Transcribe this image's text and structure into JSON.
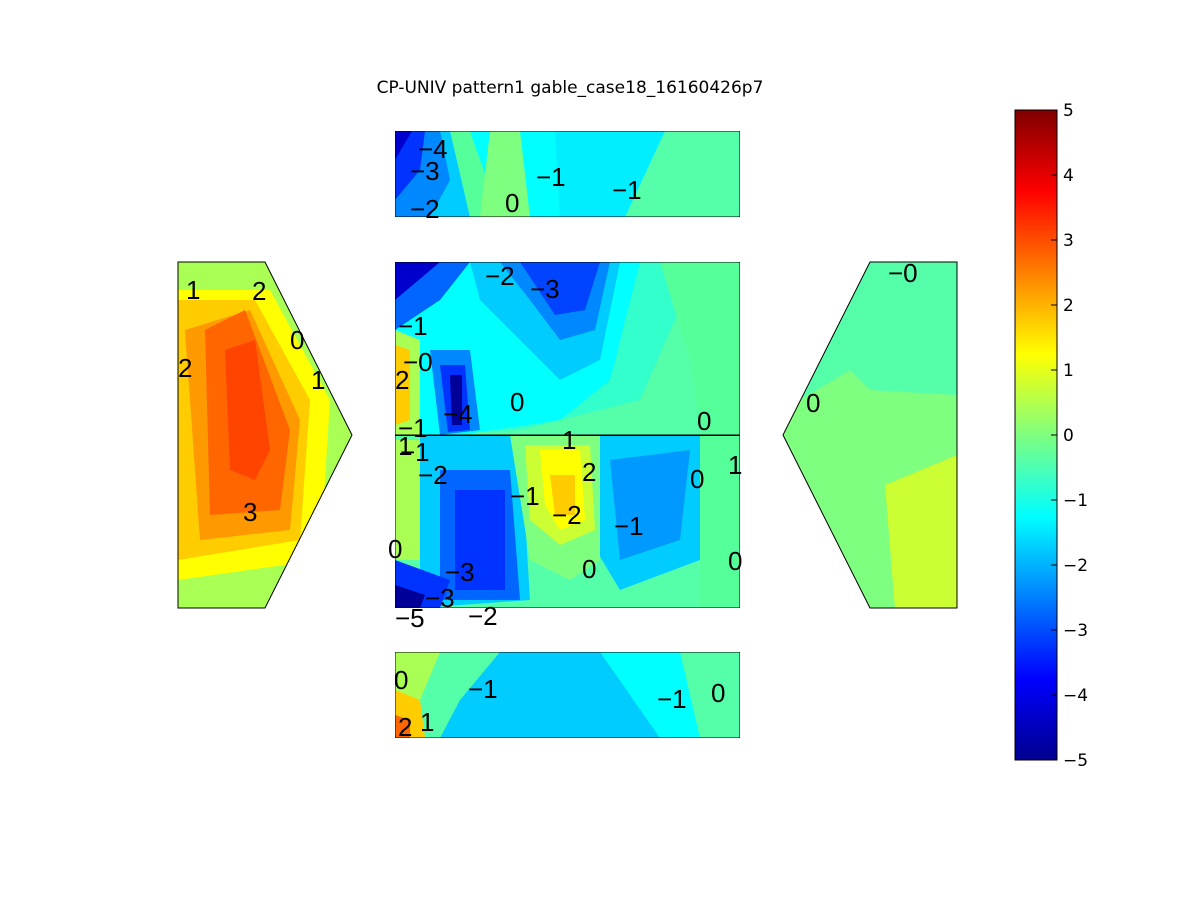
{
  "title": "CP-UNIV pattern1 gable_case18_16160426p7",
  "chart_data": {
    "type": "heatmap",
    "title": "CP-UNIV pattern1 gable_case18_16160426p7",
    "colormap": "jet",
    "colorbar": {
      "min": -5,
      "max": 5,
      "ticks": [
        "5",
        "4",
        "3",
        "2",
        "1",
        "0",
        "−1",
        "−2",
        "−3",
        "−4",
        "−5"
      ]
    },
    "panels": [
      {
        "name": "top-strip",
        "labels": [
          "−4",
          "−3",
          "−2",
          "0",
          "−1",
          "−1"
        ]
      },
      {
        "name": "roof-upper",
        "labels": [
          "−2",
          "−3",
          "−1",
          "−0",
          "2",
          "−4",
          "0",
          "0",
          "−1"
        ]
      },
      {
        "name": "roof-lower",
        "labels": [
          "1",
          "−1",
          "−2",
          "1",
          "−1",
          "2",
          "−2",
          "−1",
          "0",
          "1",
          "0",
          "−3",
          "0",
          "0",
          "−3",
          "−5",
          "−2"
        ]
      },
      {
        "name": "left-gable",
        "labels": [
          "1",
          "2",
          "0",
          "2",
          "1",
          "3"
        ]
      },
      {
        "name": "right-gable",
        "labels": [
          "−0",
          "0"
        ]
      },
      {
        "name": "bottom-strip",
        "labels": [
          "0",
          "−1",
          "−1",
          "0",
          "2",
          "1"
        ]
      }
    ]
  }
}
